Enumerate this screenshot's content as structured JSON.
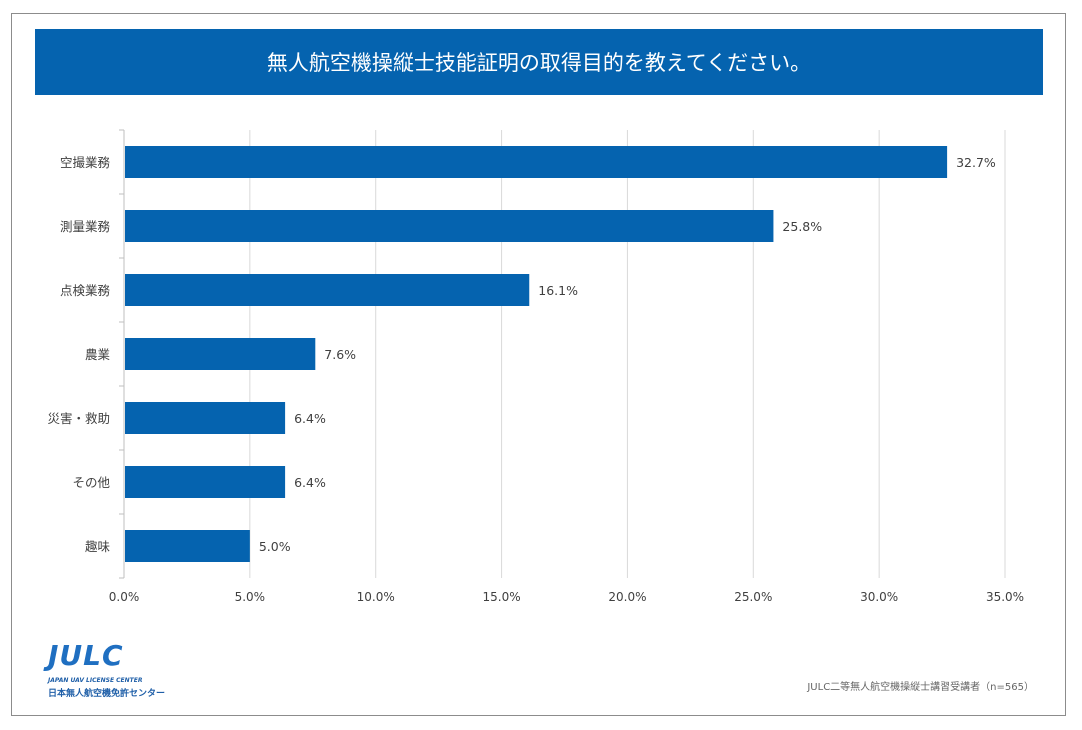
{
  "title": "無人航空機操縦士技能証明の取得目的を教えてください。",
  "source": "JULC二等無人航空機操縦士講習受講者（n=565）",
  "logo": {
    "mark": "JULC",
    "sub": "JAPAN UAV LICENSE CENTER",
    "jp": "日本無人航空機免許センター"
  },
  "colors": {
    "bar": "#0563af",
    "banner": "#0563af"
  },
  "chart_data": {
    "type": "bar",
    "orientation": "horizontal",
    "categories": [
      "空撮業務",
      "測量業務",
      "点検業務",
      "農業",
      "災害・救助",
      "その他",
      "趣味"
    ],
    "values": [
      32.7,
      25.8,
      16.1,
      7.6,
      6.4,
      6.4,
      5.0
    ],
    "data_labels": [
      "32.7%",
      "25.8%",
      "16.1%",
      "7.6%",
      "6.4%",
      "6.4%",
      "5.0%"
    ],
    "xlim": [
      0,
      35
    ],
    "x_ticks": [
      "0.0%",
      "5.0%",
      "10.0%",
      "15.0%",
      "20.0%",
      "25.0%",
      "30.0%",
      "35.0%"
    ],
    "grid": true,
    "title": "無人航空機操縦士技能証明の取得目的を教えてください。"
  }
}
